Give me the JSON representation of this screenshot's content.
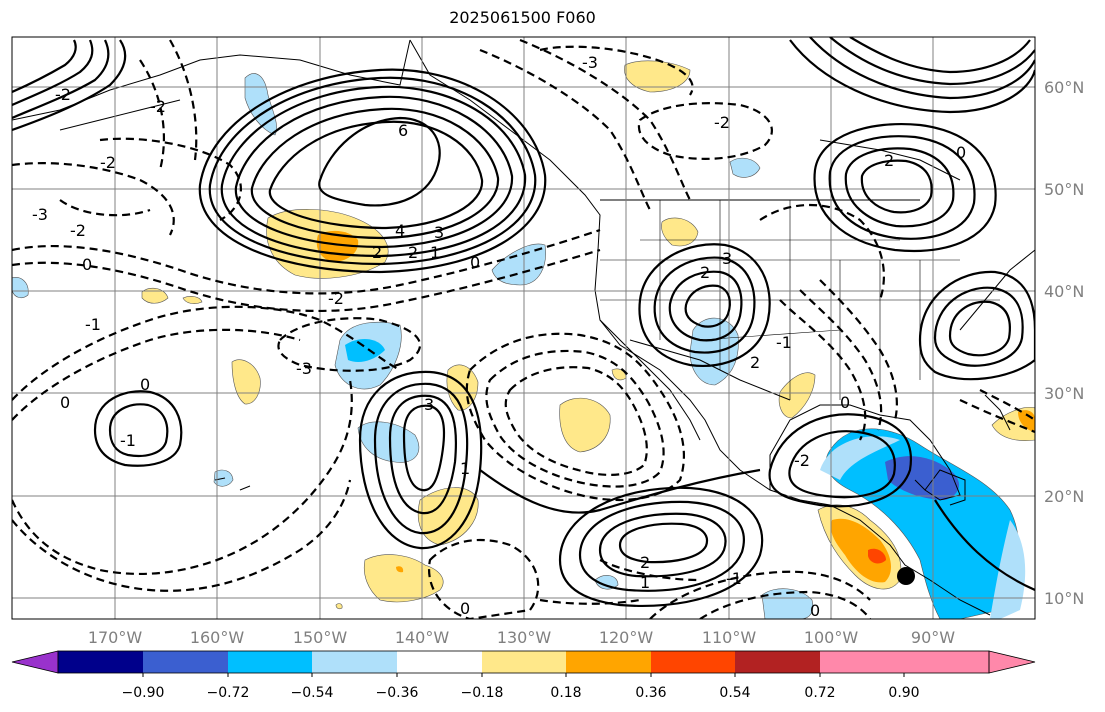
{
  "title": "2025061500 F060",
  "map": {
    "lon_labels": [
      "170°W",
      "160°W",
      "150°W",
      "140°W",
      "130°W",
      "120°W",
      "110°W",
      "100°W",
      "90°W"
    ],
    "lat_labels": [
      "60°N",
      "50°N",
      "40°N",
      "30°N",
      "20°N",
      "10°N"
    ],
    "gridline_color": "#808080",
    "contour_labels": [
      "6",
      "4",
      "3",
      "2",
      "2",
      "1",
      "0",
      "-2",
      "-2",
      "-3",
      "-2",
      "-3",
      "-2",
      "-1",
      "0",
      "-2",
      "0",
      "0",
      "-1",
      "3",
      "1",
      "2",
      "1",
      "0",
      "-1",
      "-3",
      "2",
      "-2",
      "0",
      "2",
      "3",
      "2",
      "-1",
      "0",
      "-2",
      "0"
    ]
  },
  "colorbar": {
    "ticks": [
      "−0.90",
      "−0.72",
      "−0.54",
      "−0.36",
      "−0.18",
      "0.18",
      "0.36",
      "0.54",
      "0.72",
      "0.90"
    ],
    "colors": [
      "#9932cc",
      "#00008b",
      "#3b5fd0",
      "#00bfff",
      "#afe0fa",
      "#ffffff",
      "#ffe88a",
      "#ffa500",
      "#ff4500",
      "#b22222",
      "#ff88aa"
    ]
  },
  "marker": {
    "label": "storm-center"
  }
}
